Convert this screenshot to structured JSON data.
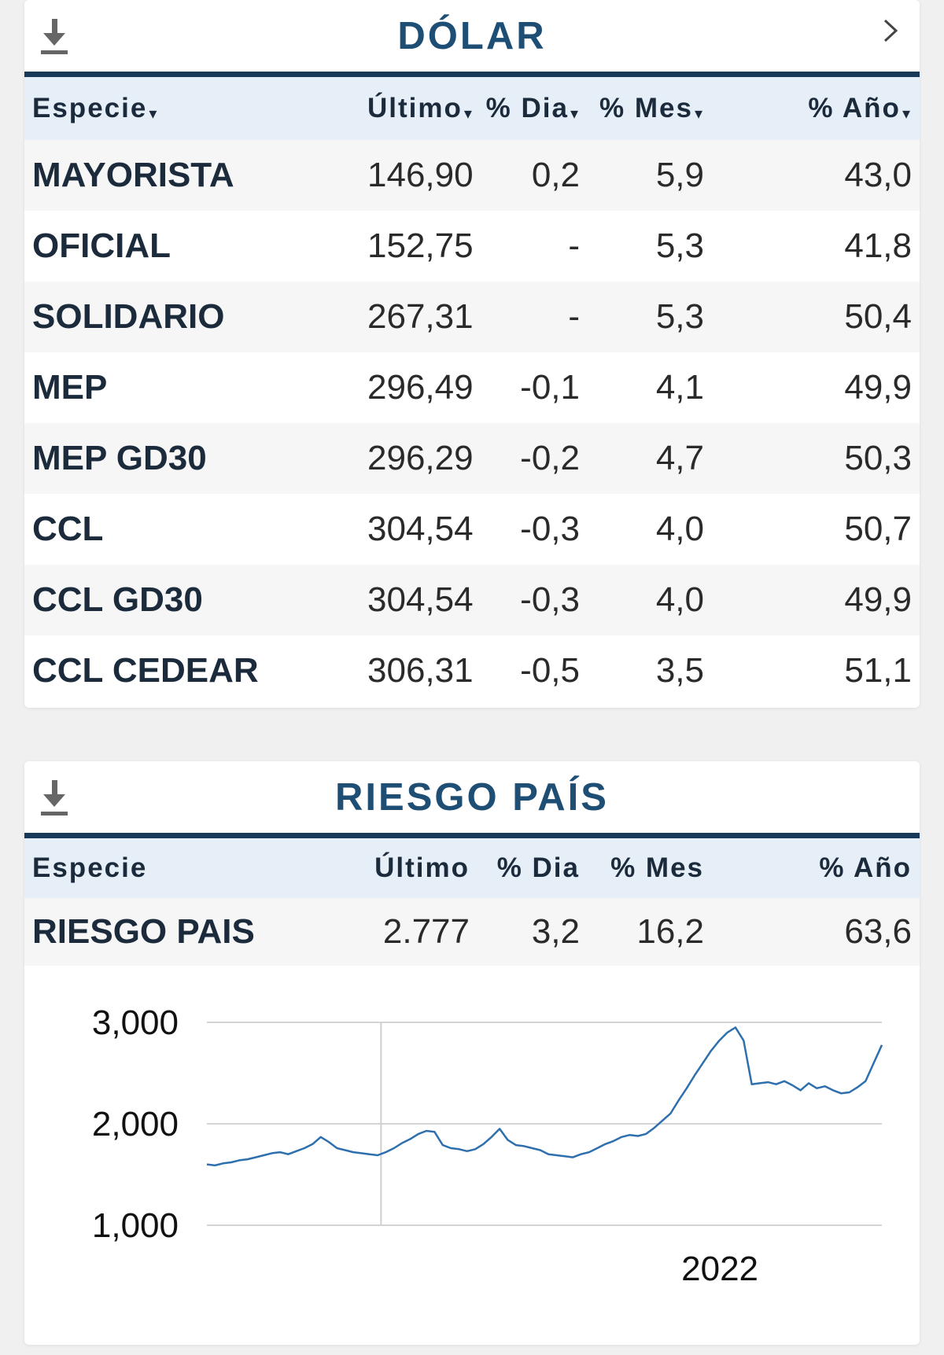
{
  "dolar": {
    "title": "DÓLAR",
    "columns": [
      "Especie",
      "Último",
      "% Dia",
      "% Mes",
      "% Año"
    ],
    "rows": [
      {
        "name": "MAYORISTA",
        "ultimo": "146,90",
        "dia": "0,2",
        "mes": "5,9",
        "anio": "43,0",
        "dia_sign": "pos",
        "mes_sign": "pos",
        "anio_sign": "pos"
      },
      {
        "name": "OFICIAL",
        "ultimo": "152,75",
        "dia": "-",
        "mes": "5,3",
        "anio": "41,8",
        "dia_sign": "neutral",
        "mes_sign": "pos",
        "anio_sign": "pos"
      },
      {
        "name": "SOLIDARIO",
        "ultimo": "267,31",
        "dia": "-",
        "mes": "5,3",
        "anio": "50,4",
        "dia_sign": "neutral",
        "mes_sign": "pos",
        "anio_sign": "pos"
      },
      {
        "name": "MEP",
        "ultimo": "296,49",
        "dia": "-0,1",
        "mes": "4,1",
        "anio": "49,9",
        "dia_sign": "neg",
        "mes_sign": "pos",
        "anio_sign": "pos"
      },
      {
        "name": "MEP GD30",
        "ultimo": "296,29",
        "dia": "-0,2",
        "mes": "4,7",
        "anio": "50,3",
        "dia_sign": "neg",
        "mes_sign": "pos",
        "anio_sign": "pos"
      },
      {
        "name": "CCL",
        "ultimo": "304,54",
        "dia": "-0,3",
        "mes": "4,0",
        "anio": "50,7",
        "dia_sign": "neg",
        "mes_sign": "pos",
        "anio_sign": "pos"
      },
      {
        "name": "CCL GD30",
        "ultimo": "304,54",
        "dia": "-0,3",
        "mes": "4,0",
        "anio": "49,9",
        "dia_sign": "neg",
        "mes_sign": "pos",
        "anio_sign": "pos"
      },
      {
        "name": "CCL CEDEAR",
        "ultimo": "306,31",
        "dia": "-0,5",
        "mes": "3,5",
        "anio": "51,1",
        "dia_sign": "neg",
        "mes_sign": "pos",
        "anio_sign": "pos"
      }
    ]
  },
  "riesgo": {
    "title": "RIESGO PAÍS",
    "columns": [
      "Especie",
      "Último",
      "% Dia",
      "% Mes",
      "% Año"
    ],
    "row": {
      "name": "RIESGO PAIS",
      "ultimo": "2.777",
      "dia": "3,2",
      "mes": "16,2",
      "anio": "63,6"
    }
  },
  "icons": {
    "download": "download-icon",
    "chevron": "chevron-right-icon"
  },
  "colors": {
    "positive": "#2f8f2a",
    "negative": "#d2202e",
    "title": "#1f4e74",
    "header_rule": "#173a5a",
    "line": "#2e6fae"
  },
  "chart_data": {
    "type": "line",
    "title": "",
    "xlabel": "",
    "ylabel": "",
    "ylim": [
      1000,
      3000
    ],
    "yticks": [
      3000,
      2000,
      1000
    ],
    "ytick_labels": [
      "3,000",
      "2,000",
      "1,000"
    ],
    "xtick_labels": [
      "2022"
    ],
    "x_marker_label": "2022",
    "grid": true,
    "series": [
      {
        "values": [
          1600,
          1590,
          1610,
          1620,
          1640,
          1650,
          1670,
          1690,
          1710,
          1720,
          1700,
          1730,
          1760,
          1800,
          1870,
          1820,
          1760,
          1740,
          1720,
          1710,
          1700,
          1690,
          1720,
          1760,
          1810,
          1850,
          1900,
          1930,
          1920,
          1790,
          1760,
          1750,
          1730,
          1750,
          1800,
          1870,
          1950,
          1840,
          1790,
          1780,
          1760,
          1740,
          1700,
          1690,
          1680,
          1670,
          1700,
          1720,
          1760,
          1800,
          1830,
          1870,
          1890,
          1880,
          1900,
          1960,
          2030,
          2100,
          2230,
          2350,
          2480,
          2600,
          2720,
          2820,
          2900,
          2950,
          2820,
          2390,
          2400,
          2410,
          2390,
          2420,
          2380,
          2330,
          2400,
          2350,
          2370,
          2330,
          2300,
          2310,
          2360,
          2420,
          2600,
          2777
        ]
      }
    ]
  }
}
